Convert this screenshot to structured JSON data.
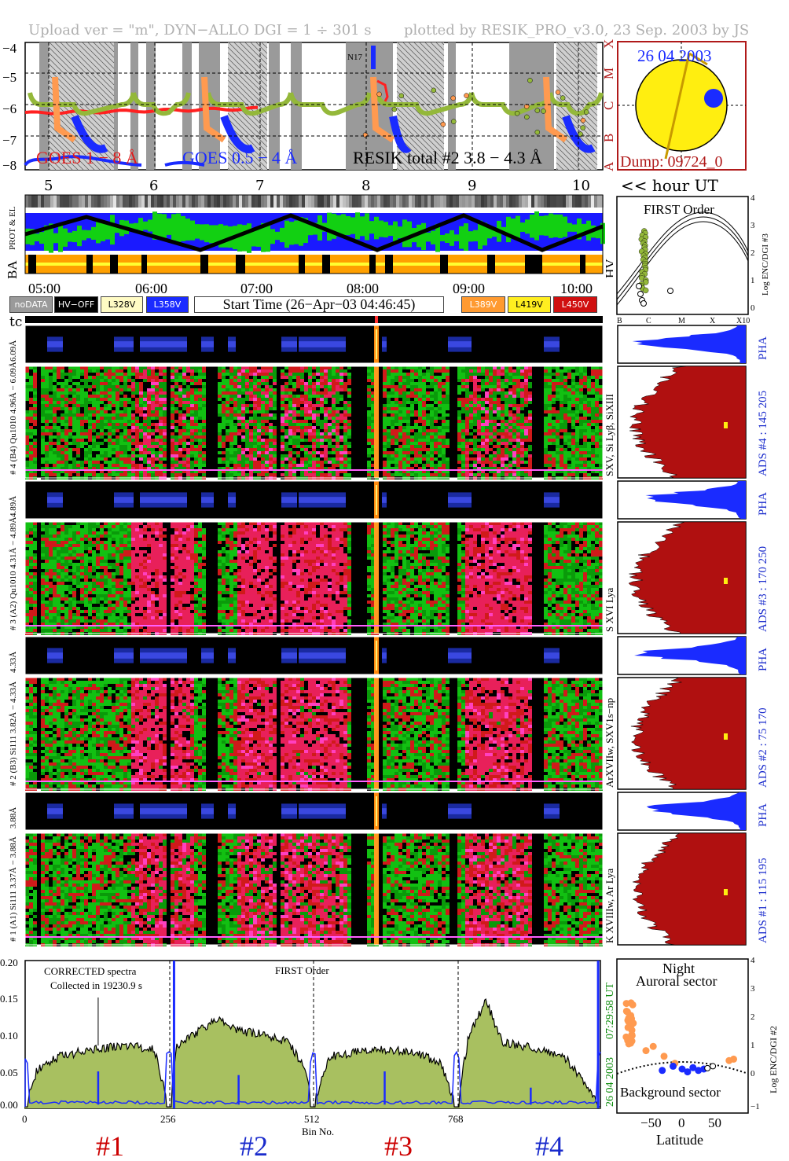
{
  "header": {
    "left": "Upload ver = \"m\", DYN−ALLO DGI =   1 ÷ 301 s",
    "right": "plotted by RESIK_PRO_v3.0, 23 Sep. 2003 by JS"
  },
  "goes_panel": {
    "yticks": [
      "−4",
      "−5",
      "−6",
      "−7",
      "−8"
    ],
    "class_letters": [
      "X",
      "M",
      "C",
      "B",
      "A"
    ],
    "legend_goes1": "GOES 1 − 8 Å",
    "legend_goes2": "GOES 0.5 − 4 Å",
    "legend_resik": "RESIK total #2  3.8 − 4.3 Å",
    "marker_label": "N17",
    "colors": {
      "goes1": "#ff2020",
      "goes2": "#1a2bff",
      "resik": "#94b83a",
      "pha": "#ff9a50"
    }
  },
  "sun_panel": {
    "date": "26 04 2003",
    "dump": "Dump: 09724_0"
  },
  "hour_axis": {
    "ticks": [
      "5",
      "6",
      "7",
      "8",
      "9",
      "10"
    ],
    "label": "<< hour UT"
  },
  "status_panel": {
    "row_labels": [
      "PROT & EL",
      "BA",
      "HV"
    ],
    "time_ticks": [
      "05:00",
      "06:00",
      "07:00",
      "08:00",
      "09:00",
      "10:00"
    ]
  },
  "legend": {
    "nodata": "noDATA",
    "hvoff": "HV−OFF",
    "l328": "L328V",
    "l358": "L358V",
    "start_time": "Start Time (26−Apr−03 04:46:45)",
    "l389": "L389V",
    "l419": "L419V",
    "l450": "L450V",
    "colors": {
      "nodata": "#9a9a9a",
      "hvoff": "#000000",
      "l328": "#fffbc4",
      "l358": "#1a2bff",
      "l389": "#ff9a30",
      "l419": "#ffee20",
      "l450": "#d01010"
    }
  },
  "first_order_panel": {
    "title": "FIRST Order",
    "ylabel": "Log ENC/DGI #3",
    "yticks": [
      "4",
      "3",
      "2",
      "1",
      "0"
    ],
    "xticks": [
      "B",
      "C",
      "M",
      "X",
      "X10"
    ]
  },
  "tc_label": "tc",
  "channels": [
    {
      "id": "4",
      "pha_label": "6.09Å",
      "left_label": "# 4 (B4) Qu1010 4.96Å − 6.09Å",
      "ions": "SXV, Si Lyβ, SiXIII",
      "ads": "ADS #4 :   145 205",
      "pha": "PHA"
    },
    {
      "id": "3",
      "pha_label": "4.89Å",
      "left_label": "# 3 (A2) Qu1010 4.31Å − 4.89Å",
      "ions": "S XVI Lya",
      "ads": "ADS #3 :   170 250",
      "pha": "PHA"
    },
    {
      "id": "2",
      "pha_label": "4.33Å",
      "left_label": "# 2 (B3) Si111 3.82Å − 4.33Å",
      "ions": "ArXVIIw, SXV1s−np",
      "ads": "ADS #2 :    75 170",
      "pha": "PHA"
    },
    {
      "id": "1",
      "pha_label": "3.88Å",
      "left_label": "# 1 (A1) Si111 3.37Å − 3.88Å",
      "ions": "K XVIIIw, Ar Lya",
      "ads": "ADS #1 :   115 195",
      "pha": "PHA"
    }
  ],
  "spectrum_panel": {
    "title_left1": "CORRECTED spectra",
    "title_left2": "Collected in 19230.9 s",
    "title_mid": "FIRST Order",
    "yticks": [
      "0.20",
      "0.15",
      "0.10",
      "0.05",
      "0.00"
    ],
    "xticks": [
      "0",
      "256",
      "512",
      "768"
    ],
    "xlabel": "Bin No.",
    "time_label": "07:29:58 UT",
    "date_label": "26 04 2003",
    "channel_labels": [
      "#1",
      "#2",
      "#3",
      "#4"
    ],
    "channel_colors": [
      "#cc0000",
      "#1a2bcc",
      "#cc0000",
      "#1a2bcc"
    ]
  },
  "latitude_panel": {
    "title1": "Night",
    "title2": "Auroral sector",
    "bottom_label": "Background sector",
    "ylabel": "Log ENC/DGI #2",
    "yticks": [
      "4",
      "3",
      "2",
      "1",
      "0",
      "−1"
    ],
    "xticks": [
      "−50",
      "0",
      "50"
    ],
    "xlabel": "Latitude"
  },
  "chart_data": {
    "type": "line",
    "title": "",
    "xlabel": "Bin No.",
    "ylabel": "",
    "xlim": [
      0,
      1024
    ],
    "ylim": [
      0,
      0.2
    ],
    "series": [
      {
        "name": "",
        "x": [
          0,
          20,
          60,
          120,
          180,
          230,
          256,
          270,
          300,
          340,
          380,
          420,
          470,
          500,
          512,
          540,
          580,
          620,
          660,
          700,
          740,
          768,
          790,
          820,
          850,
          880,
          920,
          960,
          1000,
          1024
        ],
        "values": [
          0.0,
          0.05,
          0.07,
          0.08,
          0.085,
          0.08,
          0.0,
          0.085,
          0.1,
          0.12,
          0.105,
          0.1,
          0.09,
          0.05,
          0.0,
          0.07,
          0.075,
          0.08,
          0.078,
          0.075,
          0.06,
          0.0,
          0.1,
          0.145,
          0.09,
          0.085,
          0.08,
          0.07,
          0.03,
          0.0
        ]
      }
    ]
  }
}
